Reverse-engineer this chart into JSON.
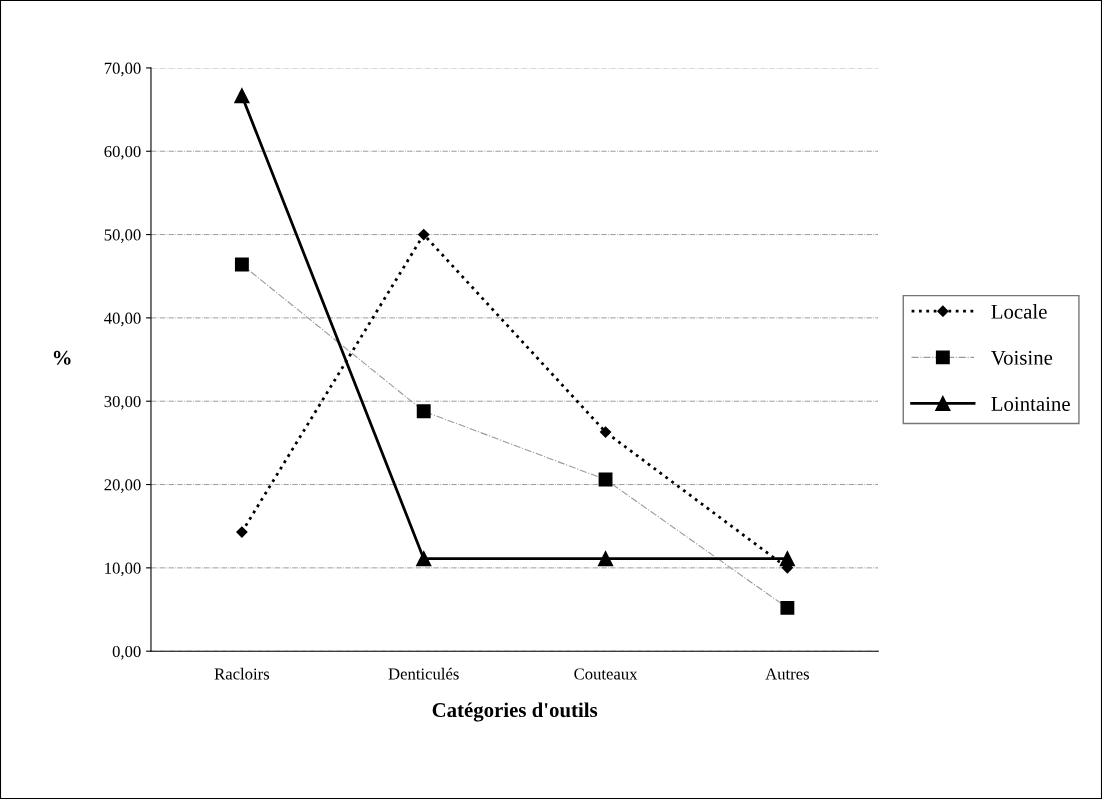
{
  "chart_data": {
    "type": "line",
    "xlabel": "Catégories d'outils",
    "ylabel": "%",
    "categories": [
      "Racloirs",
      "Denticulés",
      "Couteaux",
      "Autres"
    ],
    "series": [
      {
        "name": "Locale",
        "color": "#000000",
        "values": [
          14.3,
          50.0,
          26.3,
          10.0
        ],
        "marker": "diamond",
        "line_style": "dotted"
      },
      {
        "name": "Voisine",
        "color": "#9a9a9a",
        "values": [
          46.4,
          28.8,
          20.6,
          5.2
        ],
        "marker": "square",
        "line_style": "dashdot"
      },
      {
        "name": "Lointaine",
        "color": "#000000",
        "values": [
          66.67,
          11.1,
          11.1,
          11.1
        ],
        "marker": "triangle",
        "line_style": "solid"
      }
    ],
    "ylim": [
      0,
      70
    ],
    "yticks": [
      {
        "value": 0,
        "label": "0,00"
      },
      {
        "value": 10,
        "label": "10,00"
      },
      {
        "value": 20,
        "label": "20,00"
      },
      {
        "value": 30,
        "label": "30,00"
      },
      {
        "value": 40,
        "label": "40,00"
      },
      {
        "value": 50,
        "label": "50,00"
      },
      {
        "value": 60,
        "label": "60,00"
      },
      {
        "value": 70,
        "label": "70,00"
      }
    ],
    "grid": "y",
    "legend": "right"
  }
}
